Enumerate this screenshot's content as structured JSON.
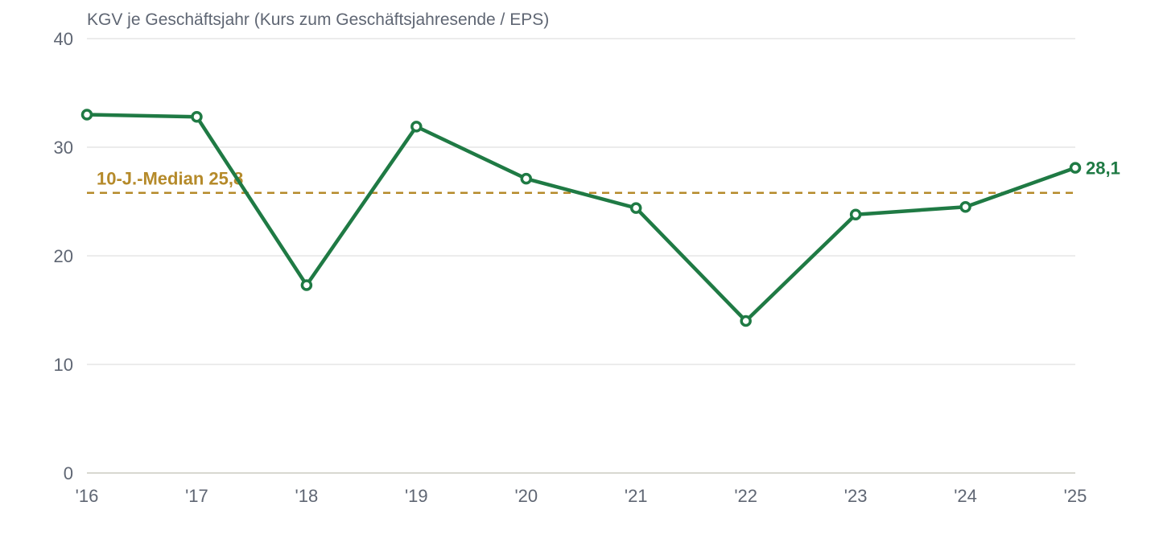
{
  "chart_data": {
    "type": "line",
    "title": "KGV je Geschäftsjahr (Kurs zum Geschäftsjahresende / EPS)",
    "xlabel": "",
    "ylabel": "",
    "categories": [
      "'16",
      "'17",
      "'18",
      "'19",
      "'20",
      "'21",
      "'22",
      "'23",
      "'24",
      "'25"
    ],
    "series": [
      {
        "values": [
          33.0,
          32.8,
          17.3,
          31.9,
          27.1,
          24.4,
          14.0,
          23.8,
          24.5,
          28.1
        ]
      }
    ],
    "ylim": [
      0,
      40
    ],
    "yticks": [
      0,
      10,
      20,
      30,
      40
    ],
    "ytick_labels": [
      "0",
      "10",
      "20",
      "30",
      "40"
    ],
    "grid": "horizontal",
    "legend": "none",
    "reference_line": {
      "value": 25.8,
      "label": "10-J.-Median 25,8",
      "color": "#b58a2a",
      "style": "dashed"
    },
    "last_value_label": "28,1",
    "colors": {
      "series": "#1f7a44",
      "median": "#b58a2a",
      "text": "#5f6673",
      "grid": "#e6e6e6"
    }
  }
}
